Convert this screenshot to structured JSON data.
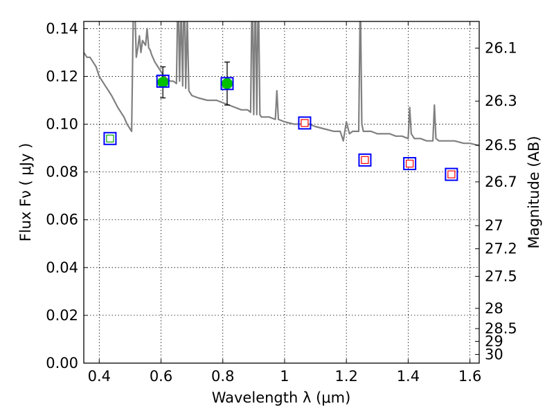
{
  "chart_data": {
    "type": "scatter",
    "xlabel": "Wavelength  λ (μm)",
    "ylabel": "Flux  Fν  ( μJy )",
    "y2label": "Magnitude (AB)",
    "xlim": [
      0.35,
      1.63
    ],
    "ylim": [
      0.0,
      0.143
    ],
    "grid": true,
    "x_ticks": [
      0.4,
      0.6,
      0.8,
      1.0,
      1.2,
      1.4,
      1.6
    ],
    "x_tick_labels": [
      "0.4",
      "0.6",
      "0.8",
      "1",
      "1.2",
      "1.4",
      "1.6"
    ],
    "y_ticks": [
      0.0,
      0.02,
      0.04,
      0.06,
      0.08,
      0.1,
      0.12,
      0.14
    ],
    "y_tick_labels": [
      "0.00",
      "0.02",
      "0.04",
      "0.06",
      "0.08",
      "0.10",
      "0.12",
      "0.14"
    ],
    "y2_ticks": [
      26.1,
      26.3,
      26.5,
      26.7,
      27.0,
      27.2,
      27.5,
      28.0,
      28.5,
      29.0,
      30.0
    ],
    "y2_tick_labels": [
      "26.1",
      "26.3",
      "26.5",
      "26.7",
      "27",
      "27.2",
      "27.5",
      "28",
      "28.5",
      "29",
      "30"
    ],
    "series": [
      {
        "name": "model SED",
        "kind": "line",
        "color": "#808080",
        "x": [
          0.35,
          0.36,
          0.37,
          0.38,
          0.39,
          0.4,
          0.42,
          0.44,
          0.46,
          0.48,
          0.49,
          0.5,
          0.505,
          0.51,
          0.515,
          0.52,
          0.525,
          0.53,
          0.535,
          0.54,
          0.545,
          0.55,
          0.555,
          0.56,
          0.565,
          0.57,
          0.58,
          0.59,
          0.6,
          0.61,
          0.62,
          0.63,
          0.64,
          0.65,
          0.655,
          0.66,
          0.665,
          0.67,
          0.675,
          0.68,
          0.685,
          0.69,
          0.7,
          0.72,
          0.75,
          0.78,
          0.8,
          0.82,
          0.84,
          0.86,
          0.88,
          0.89,
          0.895,
          0.9,
          0.905,
          0.91,
          0.915,
          0.92,
          0.925,
          0.93,
          0.95,
          0.97,
          0.975,
          0.98,
          1.0,
          1.03,
          1.06,
          1.08,
          1.1,
          1.13,
          1.16,
          1.18,
          1.19,
          1.2,
          1.21,
          1.22,
          1.24,
          1.245,
          1.25,
          1.255,
          1.26,
          1.28,
          1.3,
          1.32,
          1.34,
          1.36,
          1.38,
          1.4,
          1.405,
          1.41,
          1.415,
          1.42,
          1.44,
          1.46,
          1.48,
          1.485,
          1.49,
          1.5,
          1.52,
          1.55,
          1.58,
          1.6,
          1.63
        ],
        "y": [
          0.13,
          0.128,
          0.128,
          0.126,
          0.124,
          0.12,
          0.116,
          0.112,
          0.107,
          0.103,
          0.1,
          0.098,
          0.097,
          0.145,
          0.15,
          0.128,
          0.132,
          0.137,
          0.13,
          0.135,
          0.134,
          0.133,
          0.14,
          0.132,
          0.131,
          0.129,
          0.126,
          0.124,
          0.122,
          0.12,
          0.119,
          0.118,
          0.118,
          0.117,
          0.16,
          0.118,
          0.15,
          0.116,
          0.165,
          0.115,
          0.145,
          0.114,
          0.112,
          0.111,
          0.11,
          0.11,
          0.109,
          0.108,
          0.107,
          0.106,
          0.106,
          0.105,
          0.16,
          0.104,
          0.16,
          0.104,
          0.16,
          0.104,
          0.103,
          0.103,
          0.103,
          0.102,
          0.114,
          0.102,
          0.101,
          0.1,
          0.1,
          0.1,
          0.099,
          0.098,
          0.097,
          0.097,
          0.093,
          0.101,
          0.096,
          0.097,
          0.097,
          0.155,
          0.1,
          0.097,
          0.097,
          0.097,
          0.096,
          0.096,
          0.096,
          0.095,
          0.095,
          0.094,
          0.107,
          0.096,
          0.095,
          0.094,
          0.094,
          0.093,
          0.093,
          0.108,
          0.094,
          0.093,
          0.093,
          0.093,
          0.092,
          0.092,
          0.091
        ]
      },
      {
        "name": "measured photometry",
        "kind": "points",
        "marker": "circle",
        "color": "#00c000",
        "x": [
          0.606,
          0.814
        ],
        "y": [
          0.1175,
          0.117
        ],
        "yerr_low": [
          0.0065,
          0.009
        ],
        "yerr_high": [
          0.0065,
          0.009
        ]
      },
      {
        "name": "model photometry",
        "kind": "points",
        "marker": "open-square",
        "color": "#0000ff",
        "x": [
          0.435,
          0.606,
          0.814,
          1.065,
          1.26,
          1.405,
          1.54
        ],
        "y": [
          0.094,
          0.118,
          0.117,
          0.1005,
          0.085,
          0.0835,
          0.079
        ]
      },
      {
        "name": "estimated flux",
        "kind": "points",
        "marker": "small-square",
        "x": [
          0.435,
          1.065,
          1.26,
          1.405,
          1.54
        ],
        "y": [
          0.094,
          0.1005,
          0.085,
          0.0835,
          0.079
        ],
        "colors": [
          "#00aa00",
          "#ff0000",
          "#ff0000",
          "#ff0000",
          "#ff0000"
        ]
      }
    ]
  }
}
